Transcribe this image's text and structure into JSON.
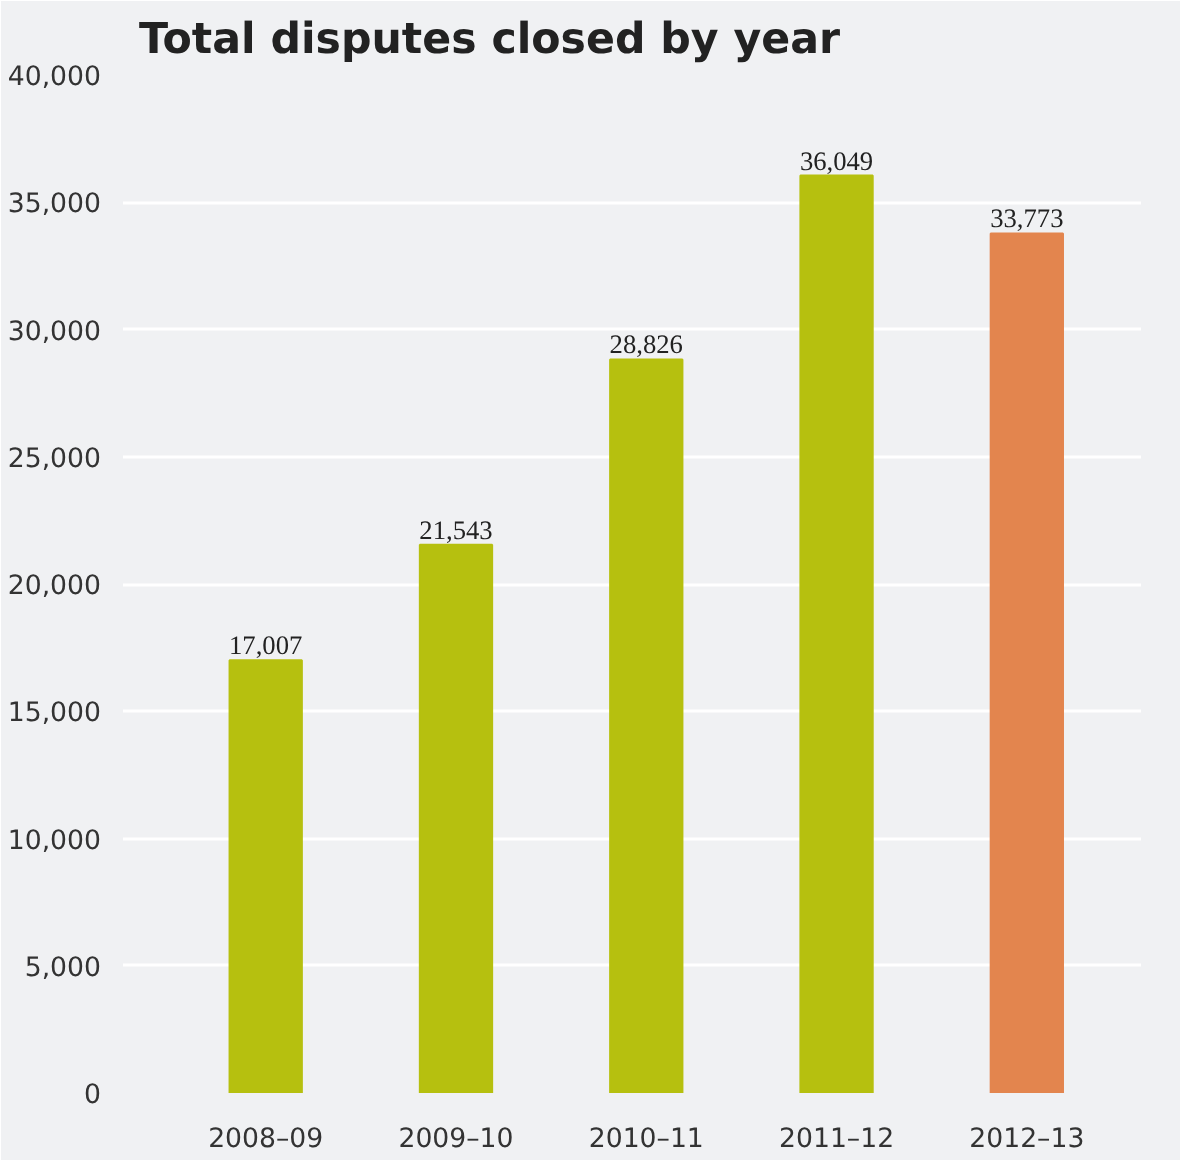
{
  "chart_data": {
    "type": "bar",
    "title": "Total disputes closed by year",
    "categories": [
      "2008–09",
      "2009–10",
      "2010–11",
      "2011–12",
      "2012–13"
    ],
    "values": [
      17007,
      21543,
      28826,
      36049,
      33773
    ],
    "colors": [
      "#b6c00f",
      "#b6c00f",
      "#b6c00f",
      "#b6c00f",
      "#e3854e"
    ],
    "ylim": [
      0,
      40000
    ],
    "yticks": [
      {
        "value": 0,
        "label": "0"
      },
      {
        "value": 5000,
        "label": "5,000"
      },
      {
        "value": 10000,
        "label": "10,000"
      },
      {
        "value": 15000,
        "label": "15,000"
      },
      {
        "value": 20000,
        "label": "20,000"
      },
      {
        "value": 25000,
        "label": "25,000"
      },
      {
        "value": 30000,
        "label": "30,000"
      },
      {
        "value": 35000,
        "label": "35,000"
      },
      {
        "value": 40000,
        "label": "40,000"
      }
    ],
    "value_labels": [
      "17,007",
      "21,543",
      "28,826",
      "36,049",
      "33,773"
    ],
    "grid": "y"
  }
}
